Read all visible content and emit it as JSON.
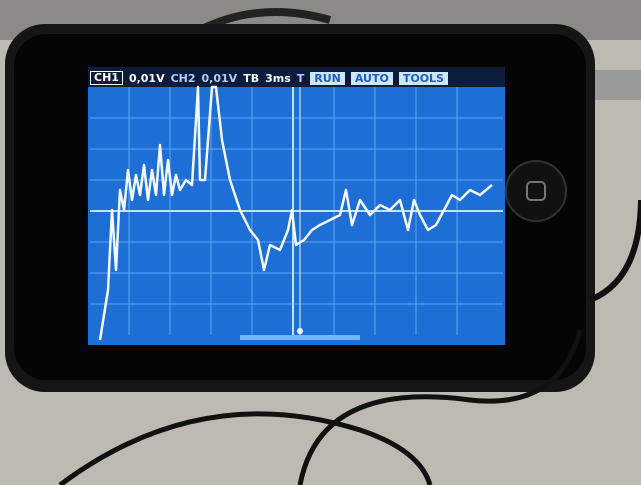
{
  "status_bar": {
    "ch1_label": "CH1",
    "ch1_scale": "0,01V",
    "ch2_label": "CH2",
    "ch2_scale": "0,01V",
    "tb_label": "TB",
    "tb_value": "3ms",
    "trigger": "T",
    "run": "RUN",
    "auto": "AUTO",
    "tools": "TOOLS"
  }
}
